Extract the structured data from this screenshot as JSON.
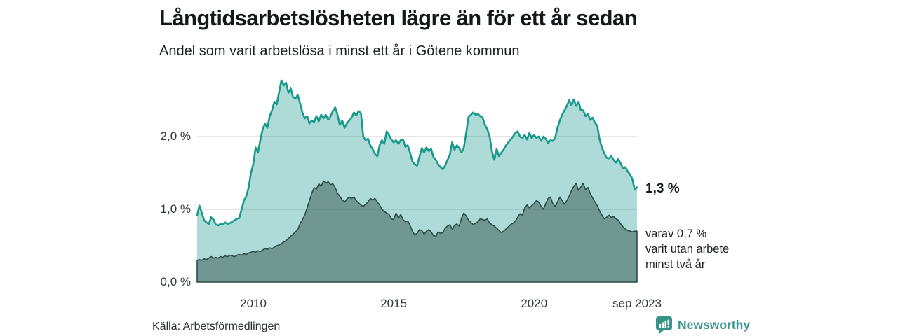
{
  "header": {
    "title": "Långtidsarbetslösheten lägre än för ett år sedan",
    "subtitle": "Andel som varit arbetslösa i minst ett år i Götene kommun"
  },
  "annotations": {
    "end_value": "1,3 %",
    "end_sub_lines": [
      "varav 0,7 %",
      "varit utan arbete",
      "minst två år"
    ]
  },
  "footer": {
    "source": "Källa: Arbetsförmedlingen",
    "brand": "Newsworthy"
  },
  "colors": {
    "line_light": "#18998b",
    "fill_light": "rgba(24,153,139,0.35)",
    "line_dark": "#2d4b46",
    "fill_dark": "rgba(45,75,70,0.47)",
    "grid": "#d8d8d8",
    "brand_teal": "#38948a"
  },
  "chart_data": {
    "type": "area",
    "title": "Långtidsarbetslösheten lägre än för ett år sedan",
    "subtitle": "Andel som varit arbetslösa i minst ett år i Götene kommun",
    "unit": "%",
    "x_domain": [
      "2008-01",
      "2023-09"
    ],
    "frequency": "monthly",
    "ylim": [
      0,
      2.9
    ],
    "grid": "horizontal",
    "y_ticks": [
      {
        "value": 0,
        "label": "0,0 %"
      },
      {
        "value": 1,
        "label": "1,0 %"
      },
      {
        "value": 2,
        "label": "2,0 %"
      }
    ],
    "x_ticks": [
      {
        "month_index": 24,
        "label": "2010"
      },
      {
        "month_index": 84,
        "label": "2015"
      },
      {
        "month_index": 144,
        "label": "2020"
      },
      {
        "month_index": 188,
        "label": "sep 2023"
      }
    ],
    "series": [
      {
        "name": "Arbetslösa minst ett år",
        "role": "light",
        "end_value": 1.3,
        "values": [
          0.92,
          1.05,
          0.95,
          0.85,
          0.82,
          0.8,
          0.89,
          0.86,
          0.79,
          0.78,
          0.8,
          0.79,
          0.82,
          0.8,
          0.81,
          0.83,
          0.85,
          0.87,
          0.88,
          1.0,
          1.12,
          1.18,
          1.3,
          1.5,
          1.62,
          1.85,
          1.78,
          1.95,
          2.1,
          2.18,
          2.12,
          2.28,
          2.36,
          2.48,
          2.44,
          2.6,
          2.77,
          2.7,
          2.74,
          2.6,
          2.66,
          2.54,
          2.52,
          2.57,
          2.46,
          2.33,
          2.25,
          2.28,
          2.18,
          2.22,
          2.2,
          2.28,
          2.21,
          2.3,
          2.25,
          2.3,
          2.23,
          2.28,
          2.35,
          2.4,
          2.3,
          2.16,
          2.22,
          2.12,
          2.18,
          2.22,
          2.26,
          2.33,
          2.29,
          2.35,
          2.32,
          2.0,
          1.95,
          1.97,
          1.88,
          1.83,
          1.76,
          1.73,
          1.88,
          1.95,
          1.9,
          2.07,
          2.02,
          1.96,
          1.92,
          1.95,
          1.9,
          1.95,
          1.96,
          1.86,
          1.88,
          1.78,
          1.66,
          1.62,
          1.6,
          1.72,
          1.84,
          1.78,
          1.85,
          1.8,
          1.83,
          1.72,
          1.68,
          1.62,
          1.58,
          1.55,
          1.6,
          1.68,
          1.75,
          1.92,
          1.82,
          1.88,
          1.84,
          1.78,
          1.85,
          2.05,
          2.27,
          2.3,
          2.33,
          2.3,
          2.31,
          2.28,
          2.26,
          2.16,
          2.1,
          2.0,
          1.8,
          1.68,
          1.83,
          1.73,
          1.78,
          1.82,
          1.88,
          1.92,
          1.96,
          2.0,
          2.05,
          2.07,
          2.0,
          1.98,
          2.02,
          1.96,
          2.05,
          1.98,
          2.02,
          1.98,
          2.0,
          1.94,
          2.0,
          1.97,
          1.91,
          1.95,
          1.94,
          1.98,
          2.12,
          2.22,
          2.3,
          2.36,
          2.42,
          2.5,
          2.43,
          2.51,
          2.42,
          2.48,
          2.36,
          2.36,
          2.28,
          2.31,
          2.23,
          2.26,
          2.19,
          2.15,
          1.96,
          1.85,
          1.77,
          1.71,
          1.7,
          1.73,
          1.68,
          1.64,
          1.69,
          1.63,
          1.56,
          1.58,
          1.52,
          1.48,
          1.42,
          1.27,
          1.3
        ]
      },
      {
        "name": "Varav utan arbete minst två år",
        "role": "dark",
        "end_value": 0.7,
        "values": [
          0.3,
          0.31,
          0.3,
          0.32,
          0.31,
          0.33,
          0.35,
          0.33,
          0.34,
          0.33,
          0.35,
          0.34,
          0.36,
          0.35,
          0.37,
          0.36,
          0.35,
          0.37,
          0.38,
          0.37,
          0.39,
          0.38,
          0.4,
          0.41,
          0.42,
          0.41,
          0.43,
          0.42,
          0.44,
          0.46,
          0.45,
          0.47,
          0.46,
          0.48,
          0.5,
          0.51,
          0.53,
          0.55,
          0.57,
          0.6,
          0.63,
          0.66,
          0.69,
          0.72,
          0.8,
          0.86,
          0.92,
          1.02,
          1.12,
          1.22,
          1.3,
          1.28,
          1.35,
          1.32,
          1.39,
          1.36,
          1.38,
          1.34,
          1.35,
          1.3,
          1.22,
          1.18,
          1.13,
          1.1,
          1.14,
          1.17,
          1.15,
          1.17,
          1.12,
          1.09,
          1.06,
          1.04,
          1.07,
          1.1,
          1.15,
          1.13,
          1.15,
          1.1,
          1.06,
          1.0,
          0.97,
          0.95,
          0.93,
          0.87,
          0.86,
          0.95,
          0.88,
          0.93,
          0.86,
          0.83,
          0.84,
          0.78,
          0.7,
          0.65,
          0.67,
          0.72,
          0.71,
          0.66,
          0.7,
          0.72,
          0.69,
          0.64,
          0.63,
          0.69,
          0.67,
          0.68,
          0.74,
          0.77,
          0.79,
          0.73,
          0.78,
          0.8,
          0.77,
          0.88,
          0.95,
          0.91,
          0.85,
          0.82,
          0.79,
          0.81,
          0.83,
          0.87,
          0.86,
          0.85,
          0.87,
          0.81,
          0.79,
          0.77,
          0.74,
          0.71,
          0.68,
          0.7,
          0.73,
          0.76,
          0.79,
          0.81,
          0.84,
          0.89,
          0.94,
          0.92,
          1.02,
          1.06,
          1.02,
          1.05,
          1.08,
          1.12,
          1.1,
          1.04,
          1.0,
          1.08,
          1.15,
          1.17,
          1.08,
          1.04,
          1.1,
          1.17,
          1.12,
          1.07,
          1.12,
          1.18,
          1.26,
          1.32,
          1.36,
          1.26,
          1.31,
          1.36,
          1.27,
          1.3,
          1.22,
          1.16,
          1.1,
          1.05,
          0.98,
          0.92,
          0.87,
          0.89,
          0.92,
          0.89,
          0.9,
          0.87,
          0.85,
          0.8,
          0.76,
          0.73,
          0.71,
          0.7,
          0.69,
          0.7,
          0.7
        ]
      }
    ]
  }
}
